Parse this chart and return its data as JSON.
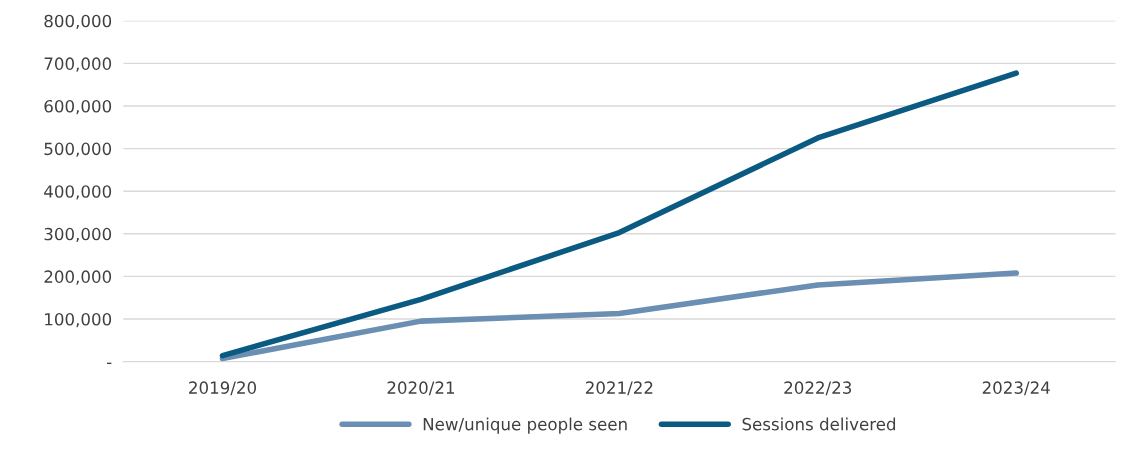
{
  "chart_data": {
    "type": "line",
    "categories": [
      "2019/20",
      "2020/21",
      "2021/22",
      "2022/23",
      "2023/24"
    ],
    "series": [
      {
        "name": "New/unique people seen",
        "color": "#6a8fb2",
        "values": [
          7000,
          95000,
          113000,
          180000,
          208000
        ]
      },
      {
        "name": "Sessions delivered",
        "color": "#0b5a82",
        "values": [
          14000,
          146000,
          303000,
          525000,
          677000
        ]
      }
    ],
    "ylim": [
      0,
      800000
    ],
    "yticks": [
      {
        "value": 0,
        "label": "-"
      },
      {
        "value": 100000,
        "label": "100,000"
      },
      {
        "value": 200000,
        "label": "200,000"
      },
      {
        "value": 300000,
        "label": "300,000"
      },
      {
        "value": 400000,
        "label": "400,000"
      },
      {
        "value": 500000,
        "label": "500,000"
      },
      {
        "value": 600000,
        "label": "600,000"
      },
      {
        "value": 700000,
        "label": "700,000"
      },
      {
        "value": 800000,
        "label": "800,000"
      }
    ],
    "grid": "y",
    "legend": "bottom",
    "marker": "none",
    "line_style": "solid"
  }
}
